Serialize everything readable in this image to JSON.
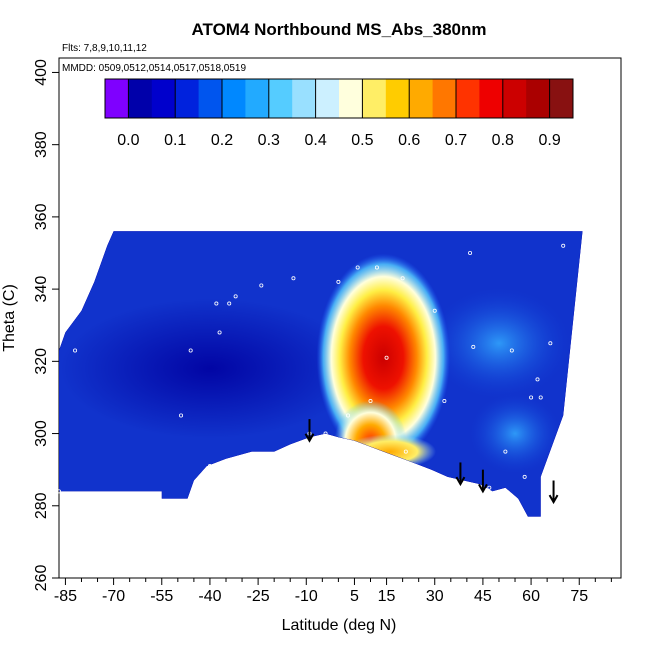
{
  "chart_data": {
    "type": "heatmap",
    "title": "ATOM4 Northbound MS_Abs_380nm",
    "annotations": [
      "Flts: 7,8,9,10,11,12",
      "MMDD: 0509,0512,0514,0517,0518,0519"
    ],
    "xlabel": "Latitude (deg N)",
    "ylabel": "Theta (C)",
    "xlim": [
      -87,
      88
    ],
    "ylim": [
      260,
      404
    ],
    "x_ticks": [
      -85,
      -70,
      -55,
      -40,
      -25,
      -10,
      5,
      15,
      30,
      45,
      60,
      75
    ],
    "x_tick_labels": [
      "-85",
      "-70",
      "-55",
      "-40",
      "-25",
      "-10",
      "5",
      "15",
      "30",
      "45",
      "60",
      "75"
    ],
    "y_ticks": [
      260,
      280,
      300,
      320,
      340,
      360,
      380,
      400
    ],
    "y_tick_labels": [
      "260",
      "280",
      "300",
      "320",
      "340",
      "360",
      "380",
      "400"
    ],
    "colorbar": {
      "breaks": [
        -0.05,
        0.0,
        0.05,
        0.1,
        0.15,
        0.2,
        0.25,
        0.3,
        0.35,
        0.4,
        0.45,
        0.5,
        0.55,
        0.6,
        0.65,
        0.7,
        0.75,
        0.8,
        0.85,
        0.9,
        0.95
      ],
      "colors": [
        "#7f00ff",
        "#0000aa",
        "#0000cc",
        "#0022dd",
        "#0055ee",
        "#0088ff",
        "#22aaff",
        "#55ccff",
        "#99e0ff",
        "#ccf0ff",
        "#ffffdd",
        "#ffee66",
        "#ffcc00",
        "#ffaa00",
        "#ff7700",
        "#ff3300",
        "#ee0000",
        "#cc0000",
        "#aa0000",
        "#881111"
      ],
      "tick_values": [
        0.0,
        0.1,
        0.2,
        0.3,
        0.4,
        0.5,
        0.6,
        0.7,
        0.8,
        0.9
      ],
      "tick_labels": [
        "0.0",
        "0.1",
        "0.2",
        "0.3",
        "0.4",
        "0.5",
        "0.6",
        "0.7",
        "0.8",
        "0.9"
      ]
    },
    "domain": {
      "upper": [
        [
          -87,
          323
        ],
        [
          -85,
          328
        ],
        [
          -80,
          334
        ],
        [
          -76,
          342
        ],
        [
          -72,
          352
        ],
        [
          -70,
          356
        ],
        [
          76,
          356
        ]
      ],
      "lower": [
        [
          -87,
          284
        ],
        [
          -55,
          284
        ],
        [
          -55,
          282
        ],
        [
          -47,
          282
        ],
        [
          -45,
          287
        ],
        [
          -41,
          291
        ],
        [
          -35,
          293
        ],
        [
          -27,
          295
        ],
        [
          -20,
          295
        ],
        [
          -15,
          297
        ],
        [
          -9,
          299
        ],
        [
          -4,
          300
        ],
        [
          0,
          299
        ],
        [
          5,
          298
        ],
        [
          11,
          296
        ],
        [
          17,
          294
        ],
        [
          23,
          292
        ],
        [
          29,
          290
        ],
        [
          34,
          288
        ],
        [
          39,
          287
        ],
        [
          44,
          286
        ],
        [
          48,
          284
        ],
        [
          52,
          285
        ],
        [
          56,
          282
        ],
        [
          59,
          277
        ],
        [
          63,
          277
        ],
        [
          63,
          288
        ],
        [
          70,
          305
        ],
        [
          76,
          356
        ]
      ]
    },
    "hotspots": [
      {
        "lat": 14,
        "theta": 321,
        "value": 0.97,
        "rx": 13,
        "ry": 18
      },
      {
        "lat": 10,
        "theta": 298,
        "value": 0.72,
        "rx": 7,
        "ry": 7
      },
      {
        "lat": 16,
        "theta": 295,
        "value": 0.6,
        "rx": 9,
        "ry": 3
      }
    ],
    "samples": [
      {
        "lat": -87,
        "theta": 284
      },
      {
        "lat": -82,
        "theta": 323
      },
      {
        "lat": -49,
        "theta": 305
      },
      {
        "lat": -46,
        "theta": 323
      },
      {
        "lat": -40,
        "theta": 291
      },
      {
        "lat": -38,
        "theta": 336
      },
      {
        "lat": -37,
        "theta": 328
      },
      {
        "lat": -34,
        "theta": 336
      },
      {
        "lat": -32,
        "theta": 338
      },
      {
        "lat": -24,
        "theta": 341
      },
      {
        "lat": -14,
        "theta": 343
      },
      {
        "lat": -9,
        "theta": 300
      },
      {
        "lat": -4,
        "theta": 300
      },
      {
        "lat": 0,
        "theta": 342
      },
      {
        "lat": 3,
        "theta": 305
      },
      {
        "lat": 6,
        "theta": 346
      },
      {
        "lat": 9,
        "theta": 296
      },
      {
        "lat": 10,
        "theta": 309
      },
      {
        "lat": 12,
        "theta": 346
      },
      {
        "lat": 15,
        "theta": 321
      },
      {
        "lat": 20,
        "theta": 343
      },
      {
        "lat": 21,
        "theta": 295
      },
      {
        "lat": 30,
        "theta": 334
      },
      {
        "lat": 33,
        "theta": 309
      },
      {
        "lat": 41,
        "theta": 350
      },
      {
        "lat": 42,
        "theta": 324
      },
      {
        "lat": 47,
        "theta": 285
      },
      {
        "lat": 52,
        "theta": 295
      },
      {
        "lat": 54,
        "theta": 323
      },
      {
        "lat": 58,
        "theta": 288
      },
      {
        "lat": 60,
        "theta": 310
      },
      {
        "lat": 62,
        "theta": 315
      },
      {
        "lat": 63,
        "theta": 310
      },
      {
        "lat": 66,
        "theta": 325
      },
      {
        "lat": 70,
        "theta": 352
      }
    ],
    "arrows": [
      {
        "lat": -9,
        "theta_top": 304,
        "theta_tip": 298
      },
      {
        "lat": 38,
        "theta_top": 292,
        "theta_tip": 286
      },
      {
        "lat": 45,
        "theta_top": 290,
        "theta_tip": 284
      },
      {
        "lat": 67,
        "theta_top": 287,
        "theta_tip": 281
      }
    ],
    "grid": false,
    "legend": "top-left inset colorbar"
  }
}
